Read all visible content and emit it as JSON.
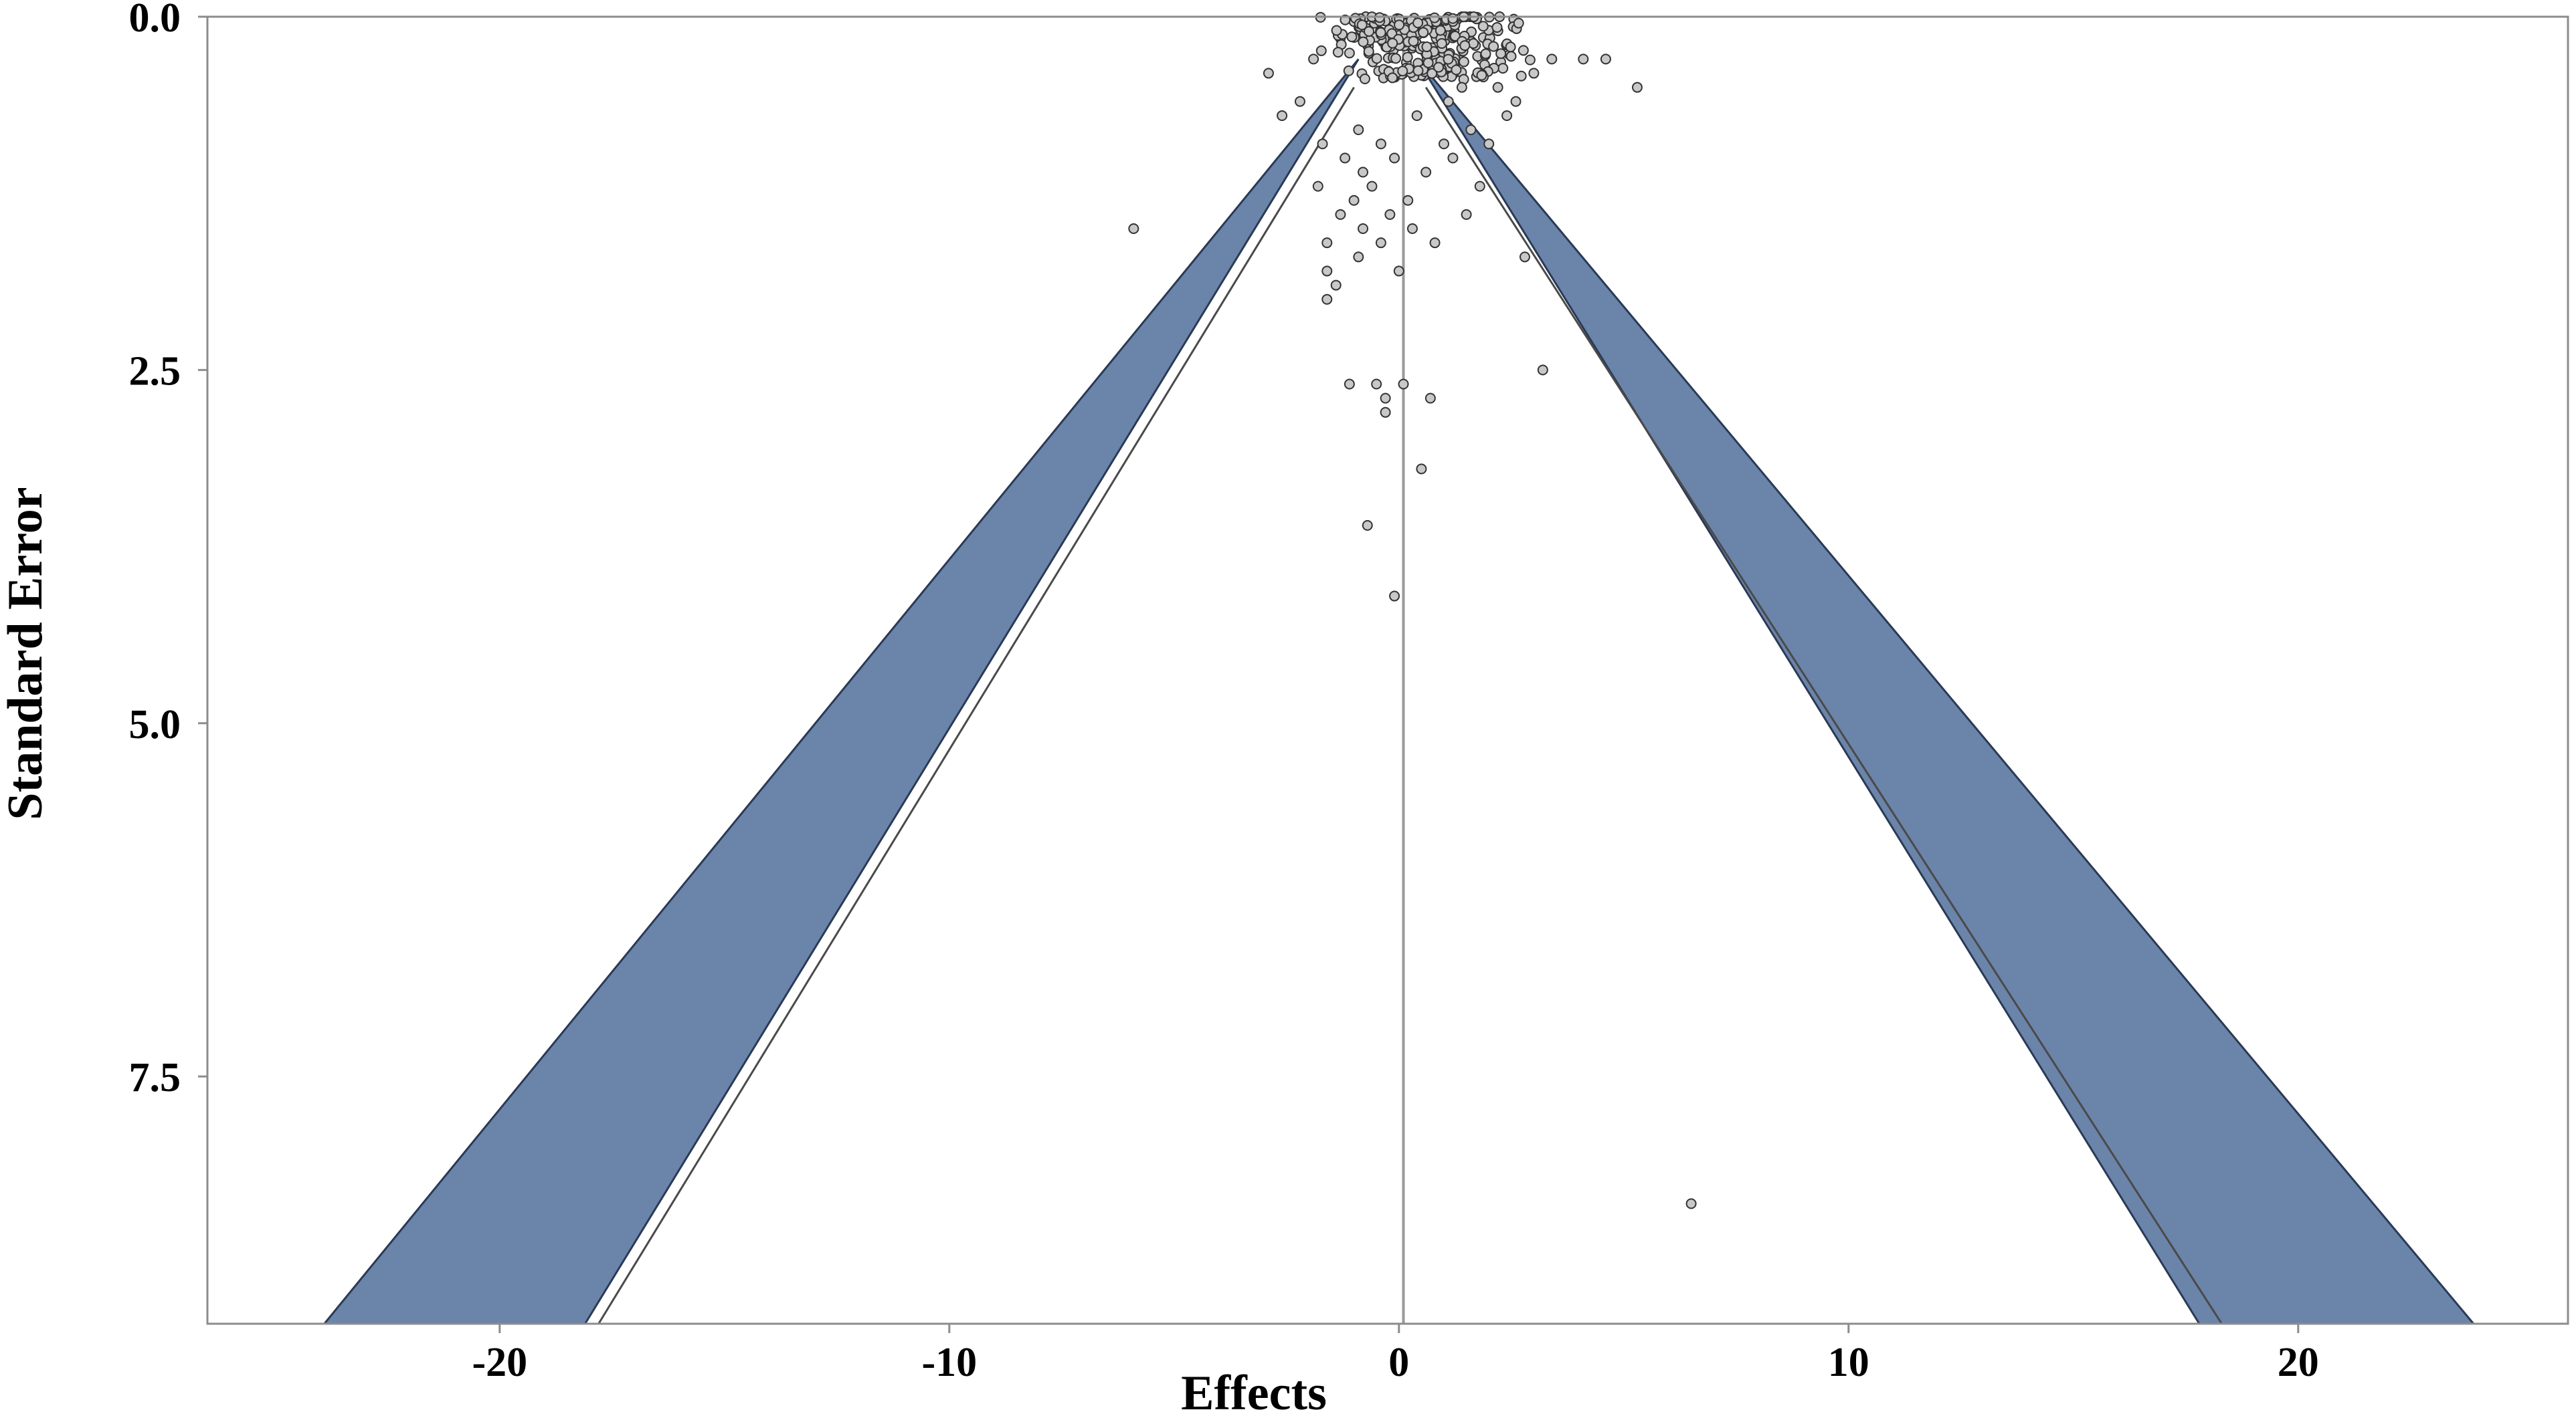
{
  "chart_data": {
    "type": "scatter",
    "subtype": "funnel-plot",
    "title": "",
    "xlabel": "Effects",
    "ylabel": "Standard Error",
    "xlim": [
      -26.5,
      26
    ],
    "ylim": [
      0,
      9.25
    ],
    "y_inverted": true,
    "xticks": [
      -20,
      -10,
      0,
      10,
      20
    ],
    "xtick_labels": [
      "-20",
      "-10",
      "0",
      "10",
      "20"
    ],
    "yticks": [
      0,
      2.5,
      5,
      7.5
    ],
    "ytick_labels": [
      "0.0",
      "2.5",
      "5.0",
      "7.5"
    ],
    "grid": false,
    "legend": "none",
    "center_line": {
      "x": 0.1,
      "color": "#9a9a9a"
    },
    "funnel_bands": [
      {
        "side": "left",
        "apex": [
          -0.9,
          0.3
        ],
        "bottom_edges": [
          -23.9,
          -18.1
        ],
        "at_se": 9.25
      },
      {
        "side": "right",
        "apex": [
          0.4,
          0.3
        ],
        "bottom_edges": [
          17.8,
          23.9
        ],
        "at_se": 9.25
      }
    ],
    "inner_lines": [
      {
        "from": [
          -1.0,
          0.5
        ],
        "to": [
          -17.8,
          9.25
        ]
      },
      {
        "from": [
          0.6,
          0.5
        ],
        "to": [
          18.3,
          9.25
        ]
      }
    ],
    "colors": {
      "band": "#6b84aa",
      "band_edge": "#2a3a55",
      "point_fill": "#c8c8c8",
      "point_edge": "#333333"
    },
    "points": [
      [
        -5.9,
        1.5
      ],
      [
        -2.9,
        0.4
      ],
      [
        -2.6,
        0.7
      ],
      [
        -2.2,
        0.6
      ],
      [
        -1.9,
        0.3
      ],
      [
        -1.8,
        1.2
      ],
      [
        -1.7,
        0.9
      ],
      [
        -1.6,
        1.6
      ],
      [
        -1.6,
        1.8
      ],
      [
        -1.6,
        2.0
      ],
      [
        -1.4,
        1.9
      ],
      [
        -1.3,
        1.4
      ],
      [
        -1.2,
        1.0
      ],
      [
        -1.1,
        2.6
      ],
      [
        -1.0,
        1.3
      ],
      [
        -0.9,
        0.8
      ],
      [
        -0.9,
        1.7
      ],
      [
        -0.8,
        1.1
      ],
      [
        -0.8,
        1.5
      ],
      [
        -0.7,
        3.6
      ],
      [
        -0.6,
        1.2
      ],
      [
        -0.5,
        2.6
      ],
      [
        -0.4,
        1.6
      ],
      [
        -0.4,
        0.9
      ],
      [
        -0.3,
        2.7
      ],
      [
        -0.3,
        2.8
      ],
      [
        -0.2,
        1.4
      ],
      [
        -0.1,
        4.1
      ],
      [
        -0.1,
        1.0
      ],
      [
        0.0,
        1.8
      ],
      [
        0.1,
        2.6
      ],
      [
        0.2,
        1.3
      ],
      [
        0.3,
        1.5
      ],
      [
        0.4,
        0.7
      ],
      [
        0.5,
        3.2
      ],
      [
        0.6,
        1.1
      ],
      [
        0.7,
        2.7
      ],
      [
        0.8,
        1.6
      ],
      [
        1.0,
        0.9
      ],
      [
        1.1,
        0.6
      ],
      [
        1.2,
        1.0
      ],
      [
        1.4,
        0.5
      ],
      [
        1.5,
        1.4
      ],
      [
        1.6,
        0.8
      ],
      [
        1.8,
        1.2
      ],
      [
        2.0,
        0.9
      ],
      [
        2.2,
        0.5
      ],
      [
        2.4,
        0.7
      ],
      [
        2.6,
        0.6
      ],
      [
        2.8,
        1.7
      ],
      [
        3.0,
        0.4
      ],
      [
        3.2,
        2.5
      ],
      [
        3.4,
        0.3
      ],
      [
        4.1,
        0.3
      ],
      [
        4.6,
        0.3
      ],
      [
        5.3,
        0.5
      ],
      [
        6.5,
        8.4
      ]
    ],
    "dense_cluster": {
      "x_range": [
        -1.5,
        3.5
      ],
      "se_range": [
        0.0,
        0.45
      ],
      "count": 280
    }
  }
}
